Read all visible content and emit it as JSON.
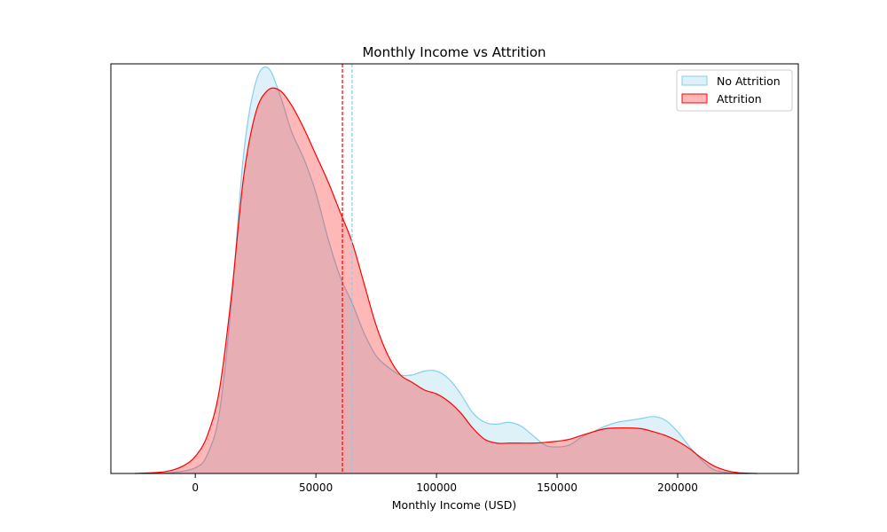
{
  "chart_data": {
    "type": "area",
    "title": "Monthly Income vs Attrition",
    "xlabel": "Monthly Income (USD)",
    "ylabel": "",
    "xlim": [
      -35000,
      250000
    ],
    "ylim": [
      0,
      1.08
    ],
    "xticks": [
      0,
      50000,
      100000,
      150000,
      200000
    ],
    "show_yticks": false,
    "grid": false,
    "legend_placement": "top-right",
    "series": [
      {
        "name": "No Attrition",
        "color": "#87ceeb",
        "fill_opacity": 0.28,
        "mean": 65000,
        "x": [
          -20000,
          -10000,
          0,
          5000,
          10000,
          15000,
          20000,
          25000,
          30000,
          35000,
          40000,
          45000,
          50000,
          55000,
          60000,
          65000,
          70000,
          75000,
          80000,
          85000,
          90000,
          95000,
          100000,
          105000,
          110000,
          115000,
          120000,
          125000,
          130000,
          135000,
          140000,
          145000,
          150000,
          155000,
          160000,
          165000,
          170000,
          175000,
          180000,
          185000,
          190000,
          195000,
          200000,
          205000,
          210000,
          215000,
          220000,
          225000,
          230000
        ],
        "y": [
          0,
          0.002,
          0.015,
          0.05,
          0.16,
          0.45,
          0.84,
          1.03,
          1.07,
          1.0,
          0.9,
          0.83,
          0.74,
          0.62,
          0.52,
          0.45,
          0.37,
          0.31,
          0.28,
          0.26,
          0.26,
          0.27,
          0.27,
          0.25,
          0.21,
          0.16,
          0.135,
          0.13,
          0.135,
          0.125,
          0.1,
          0.075,
          0.07,
          0.075,
          0.095,
          0.11,
          0.125,
          0.135,
          0.14,
          0.145,
          0.15,
          0.14,
          0.11,
          0.07,
          0.035,
          0.01,
          0.003,
          0,
          0
        ]
      },
      {
        "name": "Attrition",
        "color": "#ff0000",
        "fill_opacity": 0.28,
        "mean": 61000,
        "x": [
          -25000,
          -15000,
          -10000,
          -5000,
          0,
          5000,
          10000,
          15000,
          20000,
          25000,
          30000,
          35000,
          40000,
          45000,
          50000,
          55000,
          60000,
          65000,
          70000,
          75000,
          80000,
          85000,
          90000,
          95000,
          100000,
          105000,
          110000,
          115000,
          120000,
          125000,
          130000,
          135000,
          140000,
          145000,
          150000,
          155000,
          160000,
          165000,
          170000,
          175000,
          180000,
          185000,
          190000,
          195000,
          200000,
          205000,
          210000,
          215000,
          220000,
          225000,
          233000
        ],
        "y": [
          0,
          0.003,
          0.008,
          0.02,
          0.045,
          0.1,
          0.22,
          0.47,
          0.78,
          0.95,
          1.01,
          1.01,
          0.97,
          0.91,
          0.84,
          0.77,
          0.69,
          0.61,
          0.5,
          0.39,
          0.31,
          0.26,
          0.24,
          0.22,
          0.21,
          0.19,
          0.16,
          0.12,
          0.09,
          0.08,
          0.08,
          0.08,
          0.08,
          0.082,
          0.085,
          0.09,
          0.1,
          0.11,
          0.118,
          0.12,
          0.12,
          0.118,
          0.11,
          0.1,
          0.085,
          0.065,
          0.04,
          0.02,
          0.008,
          0.002,
          0
        ]
      }
    ]
  }
}
